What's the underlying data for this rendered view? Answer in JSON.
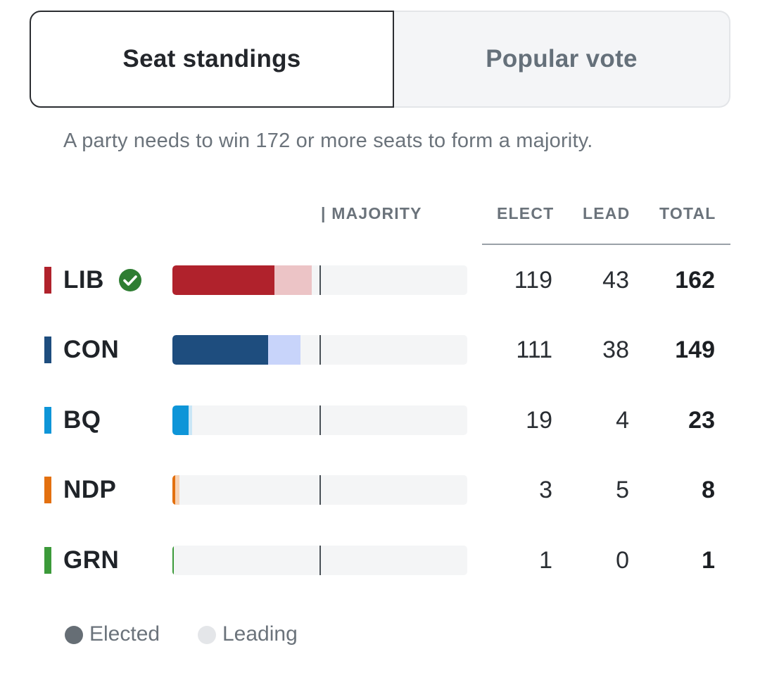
{
  "tabs": [
    {
      "label": "Seat standings",
      "active": true
    },
    {
      "label": "Popular vote",
      "active": false
    }
  ],
  "note": "A party needs to win 172 or more seats to form a majority.",
  "headers": {
    "majority": "| MAJORITY",
    "elect": "ELECT",
    "lead": "LEAD",
    "total": "TOTAL"
  },
  "chart_data": {
    "type": "bar",
    "stacked": true,
    "majority_threshold": 172,
    "max_seats": 343,
    "categories": [
      "LIB",
      "CON",
      "BQ",
      "NDP",
      "GRN"
    ],
    "series": [
      {
        "name": "Elected",
        "values": [
          119,
          111,
          19,
          3,
          1
        ]
      },
      {
        "name": "Leading",
        "values": [
          43,
          38,
          4,
          5,
          0
        ]
      }
    ]
  },
  "parties": [
    {
      "abbr": "LIB",
      "elect": "119",
      "lead": "43",
      "total": "162",
      "elect_n": 119,
      "lead_n": 43,
      "color": "#b0222c",
      "lead_color": "#ecc4c6",
      "winner": true
    },
    {
      "abbr": "CON",
      "elect": "111",
      "lead": "38",
      "total": "149",
      "elect_n": 111,
      "lead_n": 38,
      "color": "#1e4d7e",
      "lead_color": "#c8d4fa",
      "winner": false
    },
    {
      "abbr": "BQ",
      "elect": "19",
      "lead": "4",
      "total": "23",
      "elect_n": 19,
      "lead_n": 4,
      "color": "#0e95d8",
      "lead_color": "#c9e6f6",
      "winner": false
    },
    {
      "abbr": "NDP",
      "elect": "3",
      "lead": "5",
      "total": "8",
      "elect_n": 3,
      "lead_n": 5,
      "color": "#e3700f",
      "lead_color": "#f7d3b6",
      "winner": false
    },
    {
      "abbr": "GRN",
      "elect": "1",
      "lead": "0",
      "total": "1",
      "elect_n": 1,
      "lead_n": 0,
      "color": "#3c9a3a",
      "lead_color": "#c7e5c6",
      "winner": false
    }
  ],
  "legend": [
    {
      "label": "Elected",
      "color": "#666e75"
    },
    {
      "label": "Leading",
      "color": "#e4e6e9"
    }
  ],
  "icons": {
    "winner": "check-circle-icon"
  },
  "colors": {
    "check": "#2e7d32"
  }
}
